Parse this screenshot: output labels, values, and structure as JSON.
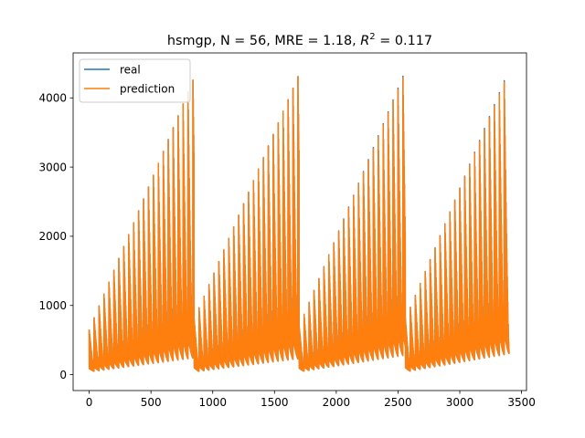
{
  "chart_data": {
    "type": "line",
    "title_prefix": "hsmgp, N = 56, MRE = 1.18, ",
    "title_r2_symbol": "R",
    "title_r2_exponent": "2",
    "title_r2_value": " = 0.117",
    "xlabel": "",
    "ylabel": "",
    "xlim": [
      -130,
      3540
    ],
    "ylim": [
      -230,
      4650
    ],
    "x_ticks": [
      0,
      500,
      1000,
      1500,
      2000,
      2500,
      3000,
      3500
    ],
    "y_ticks": [
      0,
      1000,
      2000,
      3000,
      4000
    ],
    "grid": false,
    "legend_position": "upper-left",
    "series": [
      {
        "name": "real",
        "color": "#1f77b4",
        "x_start": 0,
        "x_step": 1,
        "point_count": 3400,
        "blocks": [
          {
            "start": 0,
            "end": 850,
            "peak_start": 650,
            "peak_end": 4300,
            "base_start": 40,
            "base_end": 240
          },
          {
            "start": 850,
            "end": 1700,
            "peak_start": 800,
            "peak_end": 4350,
            "base_start": 40,
            "base_end": 230
          },
          {
            "start": 1700,
            "end": 2560,
            "peak_start": 700,
            "peak_end": 4400,
            "base_start": 40,
            "base_end": 280
          },
          {
            "start": 2560,
            "end": 3400,
            "peak_start": 800,
            "peak_end": 4420,
            "base_start": 40,
            "base_end": 300
          }
        ],
        "sub_cycle_length": 40
      },
      {
        "name": "prediction",
        "color": "#ff7f0e",
        "x_start": 0,
        "x_step": 1,
        "point_count": 3400,
        "blocks": [
          {
            "start": 0,
            "end": 850,
            "peak_start": 650,
            "peak_end": 4300,
            "base_start": 40,
            "base_end": 240
          },
          {
            "start": 850,
            "end": 1700,
            "peak_start": 800,
            "peak_end": 4350,
            "base_start": 40,
            "base_end": 230
          },
          {
            "start": 1700,
            "end": 2560,
            "peak_start": 700,
            "peak_end": 4380,
            "base_start": 40,
            "base_end": 280
          },
          {
            "start": 2560,
            "end": 3400,
            "peak_start": 800,
            "peak_end": 4400,
            "base_start": 40,
            "base_end": 300
          }
        ],
        "sub_cycle_length": 40
      }
    ]
  }
}
